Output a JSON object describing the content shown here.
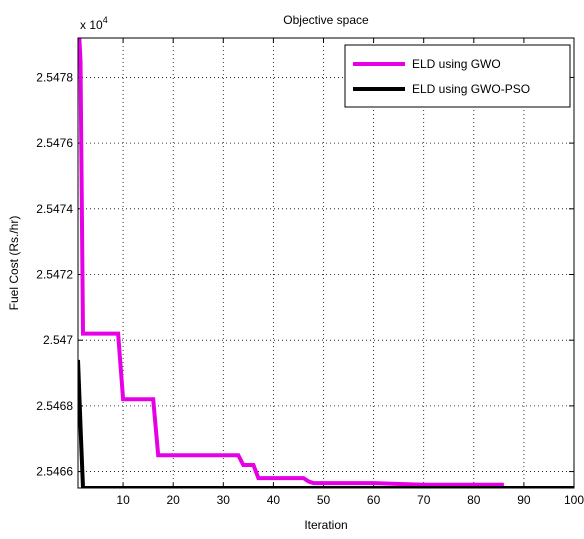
{
  "chart_data": {
    "type": "line",
    "title": "Objective space",
    "xlabel": "Iteration",
    "ylabel": "Fuel Cost (Rs./hr)",
    "exponent_label": "x 10",
    "exponent_power": "4",
    "xlim": [
      1,
      100
    ],
    "ylim": [
      25465.5,
      25479.2
    ],
    "x_ticks": [
      10,
      20,
      30,
      40,
      50,
      60,
      70,
      80,
      90,
      100
    ],
    "x_tick_labels": [
      "10",
      "20",
      "30",
      "40",
      "50",
      "60",
      "70",
      "80",
      "90",
      "100"
    ],
    "y_ticks": [
      25466,
      25468,
      25470,
      25472,
      25474,
      25476,
      25478
    ],
    "y_tick_labels": [
      "2.5466",
      "2.5468",
      "2.547",
      "2.5472",
      "2.5474",
      "2.5476",
      "2.5478"
    ],
    "grid": true,
    "legend_position": "top-right",
    "series": [
      {
        "name": "ELD using GWO",
        "color": "#e600e6",
        "points": [
          [
            1,
            25480.0
          ],
          [
            1.5,
            25478.5
          ],
          [
            2,
            25470.2
          ],
          [
            9,
            25470.2
          ],
          [
            10,
            25468.2
          ],
          [
            16,
            25468.2
          ],
          [
            17,
            25466.5
          ],
          [
            23,
            25466.5
          ],
          [
            33,
            25466.5
          ],
          [
            34,
            25466.2
          ],
          [
            36,
            25466.2
          ],
          [
            37,
            25465.8
          ],
          [
            46,
            25465.8
          ],
          [
            47,
            25465.7
          ],
          [
            48,
            25465.65
          ],
          [
            60,
            25465.65
          ],
          [
            70,
            25465.6
          ],
          [
            86,
            25465.6
          ]
        ]
      },
      {
        "name": "ELD using GWO-PSO",
        "color": "#000000",
        "points": [
          [
            1,
            25469.4
          ],
          [
            1.6,
            25467.0
          ],
          [
            2,
            25465.5
          ],
          [
            100,
            25465.5
          ]
        ]
      }
    ]
  }
}
